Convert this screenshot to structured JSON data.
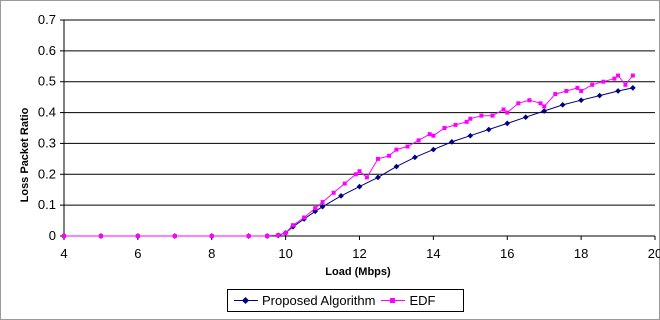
{
  "chart_data": {
    "type": "line",
    "title": "",
    "xlabel": "Load (Mbps)",
    "ylabel": "Loss Packet Ratio",
    "xlim": [
      4,
      20
    ],
    "ylim": [
      0,
      0.7
    ],
    "xticks": [
      "4",
      "6",
      "8",
      "10",
      "12",
      "14",
      "16",
      "18",
      "20"
    ],
    "yticks": [
      "0",
      "0.1",
      "0.2",
      "0.3",
      "0.4",
      "0.5",
      "0.6",
      "0.7"
    ],
    "grid": "horizontal",
    "legend": "bottom",
    "series": [
      {
        "name": "Proposed Algorithm",
        "color": "#000080",
        "marker": "diamond",
        "x": [
          4,
          5,
          6,
          7,
          8,
          9,
          9.5,
          9.8,
          10,
          10.2,
          10.5,
          10.8,
          11,
          11.5,
          12,
          12.5,
          13,
          13.5,
          14,
          14.5,
          15,
          15.5,
          16,
          16.5,
          17,
          17.5,
          18,
          18.5,
          19,
          19.4
        ],
        "values": [
          0,
          0,
          0,
          0,
          0,
          0,
          0,
          0.002,
          0.01,
          0.03,
          0.055,
          0.08,
          0.095,
          0.13,
          0.16,
          0.19,
          0.225,
          0.255,
          0.28,
          0.305,
          0.325,
          0.345,
          0.365,
          0.385,
          0.405,
          0.425,
          0.44,
          0.455,
          0.47,
          0.48
        ]
      },
      {
        "name": "EDF",
        "color": "#ff00ff",
        "marker": "square",
        "x": [
          4,
          5,
          6,
          7,
          8,
          9,
          9.5,
          9.8,
          10,
          10.2,
          10.5,
          10.8,
          11,
          11.3,
          11.6,
          11.9,
          12,
          12.2,
          12.5,
          12.8,
          13,
          13.3,
          13.6,
          13.9,
          14,
          14.3,
          14.6,
          14.9,
          15,
          15.3,
          15.6,
          15.9,
          16,
          16.3,
          16.6,
          16.9,
          17,
          17.3,
          17.6,
          17.9,
          18,
          18.3,
          18.6,
          18.9,
          19,
          19.2,
          19.4
        ],
        "values": [
          0,
          0,
          0,
          0,
          0,
          0,
          0,
          0.003,
          0.01,
          0.035,
          0.06,
          0.09,
          0.11,
          0.14,
          0.17,
          0.2,
          0.21,
          0.19,
          0.25,
          0.26,
          0.28,
          0.29,
          0.31,
          0.33,
          0.325,
          0.35,
          0.36,
          0.37,
          0.38,
          0.39,
          0.39,
          0.41,
          0.4,
          0.43,
          0.44,
          0.43,
          0.42,
          0.46,
          0.47,
          0.48,
          0.47,
          0.49,
          0.5,
          0.51,
          0.52,
          0.49,
          0.52
        ]
      }
    ]
  }
}
